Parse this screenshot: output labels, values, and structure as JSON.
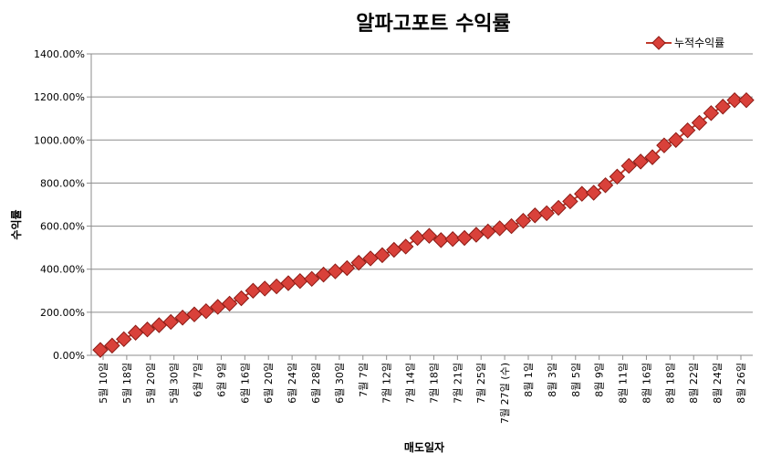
{
  "chart_data": {
    "type": "line",
    "title": "알파고포트 수익률",
    "xlabel": "매도일자",
    "ylabel": "수익률",
    "ylim": [
      0,
      1400
    ],
    "y_ticks": [
      "0.00%",
      "200.00%",
      "400.00%",
      "600.00%",
      "800.00%",
      "1000.00%",
      "1200.00%",
      "1400.00%"
    ],
    "y_unit": "%",
    "grid": true,
    "legend_position": "top-right",
    "x_labels": [
      "5월 10일",
      "5월 18일",
      "5월 20일",
      "5월 30일",
      "6월 7일",
      "6월 9일",
      "6월 16일",
      "6월 20일",
      "6월 24일",
      "6월 28일",
      "6월 30일",
      "7월 7일",
      "7월 12일",
      "7월 14일",
      "7월 18일",
      "7월 21일",
      "7월 25일",
      "7월 27일 (수)",
      "8월 1일",
      "8월 3일",
      "8월 5일",
      "8월 9일",
      "8월 11일",
      "8월 16일",
      "8월 18일",
      "8월 22일",
      "8월 24일",
      "8월 26일"
    ],
    "series": [
      {
        "name": "누적수익률",
        "color": "#c0392b",
        "marker": "diamond",
        "values": [
          25,
          45,
          75,
          105,
          120,
          140,
          155,
          175,
          190,
          205,
          225,
          240,
          265,
          300,
          310,
          320,
          335,
          345,
          355,
          375,
          390,
          405,
          430,
          450,
          465,
          490,
          505,
          545,
          555,
          535,
          540,
          545,
          560,
          575,
          590,
          600,
          625,
          650,
          660,
          685,
          715,
          750,
          755,
          790,
          830,
          880,
          900,
          920,
          975,
          1000,
          1045,
          1080,
          1125,
          1155,
          1185,
          1185
        ]
      }
    ]
  }
}
